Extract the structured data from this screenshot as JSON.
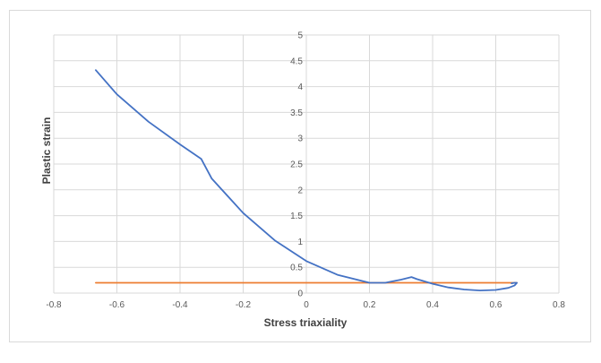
{
  "chart_data": {
    "type": "line",
    "title": "",
    "xlabel": "Stress triaxiality",
    "ylabel": "Plastic strain",
    "xlim": [
      -0.8,
      0.8
    ],
    "ylim": [
      0,
      5
    ],
    "xticks": [
      -0.8,
      -0.6,
      -0.4,
      -0.2,
      0,
      0.2,
      0.4,
      0.6,
      0.8
    ],
    "yticks": [
      0,
      0.5,
      1,
      1.5,
      2,
      2.5,
      3,
      3.5,
      4,
      4.5,
      5
    ],
    "xtick_labels": [
      "-0.8",
      "-0.6",
      "-0.4",
      "-0.2",
      "0",
      "0.2",
      "0.4",
      "0.6",
      "0.8"
    ],
    "ytick_labels": [
      "0",
      "0.5",
      "1",
      "1.5",
      "2",
      "2.5",
      "3",
      "3.5",
      "4",
      "4.5",
      "5"
    ],
    "grid": true,
    "legend": "none",
    "colors": {
      "series1": "#4472c4",
      "series2": "#ed7d31",
      "grid": "#d9d9d9"
    },
    "series": [
      {
        "x": [
          -0.667,
          -0.6,
          -0.5,
          -0.4,
          -0.333,
          -0.3,
          -0.2,
          -0.1,
          0,
          0.1,
          0.2,
          0.25,
          0.3,
          0.333,
          0.35,
          0.4,
          0.45,
          0.5,
          0.55,
          0.6,
          0.64,
          0.66,
          0.667,
          0.66,
          0.65
        ],
        "y": [
          4.32,
          3.85,
          3.32,
          2.88,
          2.6,
          2.22,
          1.55,
          1.02,
          0.62,
          0.35,
          0.2,
          0.2,
          0.26,
          0.31,
          0.27,
          0.18,
          0.11,
          0.07,
          0.05,
          0.06,
          0.1,
          0.15,
          0.2,
          0.2,
          0.19
        ]
      },
      {
        "x": [
          -0.667,
          0.667
        ],
        "y": [
          0.2,
          0.2
        ]
      }
    ]
  }
}
